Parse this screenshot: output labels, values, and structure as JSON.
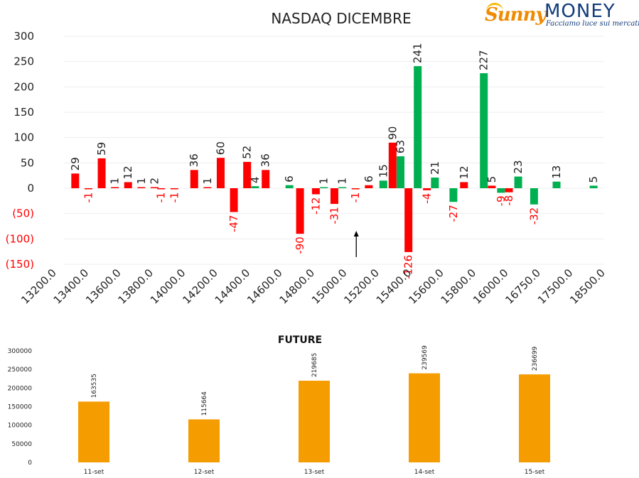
{
  "logo": {
    "brand_part1": "Sunny",
    "brand_part2": "MONEY",
    "tagline": "Facciamo luce sui mercati"
  },
  "colors": {
    "positive": "#00b050",
    "negative": "#ff0000",
    "future": "#f59c00",
    "text": "#222222"
  },
  "chart_data": [
    {
      "type": "bar",
      "title": "NASDAQ DICEMBRE",
      "categories": [
        "13200.0",
        "13400.0",
        "13600.0",
        "13800.0",
        "14000.0",
        "14200.0",
        "14400.0",
        "14600.0",
        "14800.0",
        "15000.0",
        "15200.0",
        "15400.0",
        "15600.0",
        "15800.0",
        "16000.0",
        "16750.0",
        "17500.0",
        "18500.0"
      ],
      "y_ticks": [
        "300",
        "250",
        "200",
        "150",
        "100",
        "50",
        "0",
        "(50)",
        "(100)",
        "(150)"
      ],
      "ylim": [
        -150,
        300
      ],
      "bars": [
        {
          "x": 1.5,
          "value": 29,
          "series": "red"
        },
        {
          "x": 2.0,
          "value": -1,
          "series": "red"
        },
        {
          "x": 2.5,
          "value": 59,
          "series": "red"
        },
        {
          "x": 3.0,
          "value": 1,
          "series": "red"
        },
        {
          "x": 3.5,
          "value": 12,
          "series": "red"
        },
        {
          "x": 4.0,
          "value": 1,
          "series": "red"
        },
        {
          "x": 4.5,
          "value": 2,
          "series": "red"
        },
        {
          "x": 4.75,
          "value": -1,
          "series": "red"
        },
        {
          "x": 5.25,
          "value": -1,
          "series": "red"
        },
        {
          "x": 6.0,
          "value": 36,
          "series": "red"
        },
        {
          "x": 6.5,
          "value": 1,
          "series": "red"
        },
        {
          "x": 7.0,
          "value": 60,
          "series": "red"
        },
        {
          "x": 7.5,
          "value": -47,
          "series": "red"
        },
        {
          "x": 8.0,
          "value": 52,
          "series": "red"
        },
        {
          "x": 8.3,
          "value": 4,
          "series": "green"
        },
        {
          "x": 8.7,
          "value": 36,
          "series": "red"
        },
        {
          "x": 9.6,
          "value": 6,
          "series": "green"
        },
        {
          "x": 10.0,
          "value": -90,
          "series": "red"
        },
        {
          "x": 10.6,
          "value": -12,
          "series": "red"
        },
        {
          "x": 10.9,
          "value": 1,
          "series": "green"
        },
        {
          "x": 11.3,
          "value": -31,
          "series": "red"
        },
        {
          "x": 11.6,
          "value": 1,
          "series": "green"
        },
        {
          "x": 12.1,
          "value": -1,
          "series": "red"
        },
        {
          "x": 12.6,
          "value": 6,
          "series": "red"
        },
        {
          "x": 13.15,
          "value": 15,
          "series": "green"
        },
        {
          "x": 13.5,
          "value": 90,
          "series": "red"
        },
        {
          "x": 13.8,
          "value": 63,
          "series": "green"
        },
        {
          "x": 14.1,
          "value": -126,
          "series": "red"
        },
        {
          "x": 14.45,
          "value": 241,
          "series": "green"
        },
        {
          "x": 14.8,
          "value": -4,
          "series": "red"
        },
        {
          "x": 15.1,
          "value": 21,
          "series": "green"
        },
        {
          "x": 15.8,
          "value": -27,
          "series": "green"
        },
        {
          "x": 16.2,
          "value": 12,
          "series": "red"
        },
        {
          "x": 16.95,
          "value": 227,
          "series": "green"
        },
        {
          "x": 17.25,
          "value": 5,
          "series": "red"
        },
        {
          "x": 17.6,
          "value": -9,
          "series": "green"
        },
        {
          "x": 17.9,
          "value": -8,
          "series": "red"
        },
        {
          "x": 18.25,
          "value": 23,
          "series": "green"
        },
        {
          "x": 18.85,
          "value": -32,
          "series": "green"
        },
        {
          "x": 19.7,
          "value": 13,
          "series": "green"
        },
        {
          "x": 21.1,
          "value": 5,
          "series": "green"
        }
      ],
      "annotation": "arrow-up",
      "annotation_x": 12.1,
      "grid": true,
      "legend": "none"
    },
    {
      "type": "bar",
      "title": "FUTURE",
      "categories": [
        "11-set",
        "12-set",
        "13-set",
        "14-set",
        "15-set"
      ],
      "values": [
        163535,
        115664,
        219685,
        239569,
        236699
      ],
      "y_ticks": [
        "300000",
        "250000",
        "200000",
        "150000",
        "100000",
        "50000",
        "0"
      ],
      "ylim": [
        0,
        300000
      ],
      "grid": false,
      "legend": "none"
    }
  ]
}
